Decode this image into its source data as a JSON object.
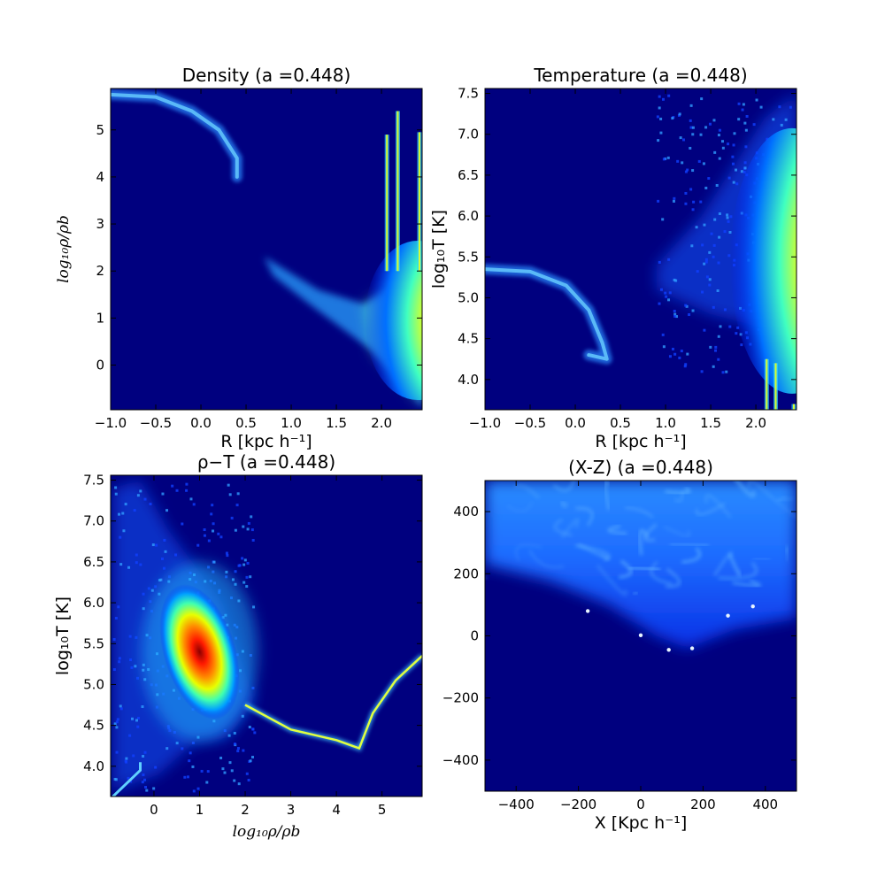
{
  "chart_data": [
    {
      "type": "heatmap",
      "title": "Density (a =0.448)",
      "xlabel": "R [kpc h⁻¹]",
      "ylabel": "log₁₀ρ/ρb",
      "xlim": [
        -1.0,
        2.45
      ],
      "ylim": [
        -0.95,
        5.88
      ],
      "xticks": [
        "−1.0",
        "−0.5",
        "0.0",
        "0.5",
        "1.0",
        "1.5",
        "2.0"
      ],
      "yticks": [
        "0",
        "1",
        "2",
        "3",
        "4",
        "5"
      ],
      "colormap": "jet",
      "background_color": "#00007f",
      "features": {
        "arc": [
          [
            -1.0,
            5.75
          ],
          [
            -0.5,
            5.7
          ],
          [
            -0.1,
            5.4
          ],
          [
            0.2,
            5.0
          ],
          [
            0.4,
            4.4
          ],
          [
            0.4,
            4.0
          ]
        ],
        "wedge": [
          [
            0.7,
            2.3
          ],
          [
            1.3,
            1.6
          ],
          [
            1.8,
            1.3
          ],
          [
            2.45,
            2.0
          ],
          [
            2.45,
            -0.9
          ],
          [
            2.3,
            -0.5
          ],
          [
            1.9,
            0.3
          ],
          [
            1.2,
            1.3
          ],
          [
            0.8,
            1.9
          ]
        ],
        "peak": [
          2.4,
          0.95
        ],
        "spikes": [
          [
            2.06,
            4.9
          ],
          [
            2.18,
            5.4
          ],
          [
            2.42,
            4.95
          ]
        ]
      },
      "grid": false
    },
    {
      "type": "heatmap",
      "title": "Temperature (a =0.448)",
      "xlabel": "R [kpc h⁻¹]",
      "ylabel": "log₁₀T  [K]",
      "xlim": [
        -1.0,
        2.45
      ],
      "ylim": [
        3.63,
        7.56
      ],
      "xticks": [
        "−1.0",
        "−0.5",
        "0.0",
        "0.5",
        "1.0",
        "1.5",
        "2.0"
      ],
      "yticks": [
        "4.0",
        "4.5",
        "5.0",
        "5.5",
        "6.0",
        "6.5",
        "7.0",
        "7.5"
      ],
      "colormap": "jet",
      "background_color": "#00007f",
      "features": {
        "arc": [
          [
            -1.0,
            5.35
          ],
          [
            -0.5,
            5.32
          ],
          [
            -0.1,
            5.15
          ],
          [
            0.15,
            4.85
          ],
          [
            0.3,
            4.45
          ],
          [
            0.35,
            4.25
          ],
          [
            0.15,
            4.3
          ]
        ],
        "cloud": [
          [
            0.9,
            5.4
          ],
          [
            1.4,
            6.0
          ],
          [
            2.1,
            7.2
          ],
          [
            2.45,
            7.5
          ],
          [
            2.45,
            4.1
          ],
          [
            2.2,
            4.6
          ],
          [
            1.5,
            4.8
          ],
          [
            0.9,
            5.1
          ]
        ],
        "peak": [
          2.4,
          5.45
        ],
        "spikes": [
          [
            2.12,
            4.25
          ],
          [
            2.22,
            4.2
          ],
          [
            2.42,
            3.7
          ]
        ]
      },
      "grid": false
    },
    {
      "type": "heatmap",
      "title": "ρ−T (a =0.448)",
      "xlabel": "log₁₀ρ/ρb",
      "ylabel": "log₁₀T  [K]",
      "xlim": [
        -0.95,
        5.88
      ],
      "ylim": [
        3.63,
        7.56
      ],
      "xticks": [
        "0",
        "1",
        "2",
        "3",
        "4",
        "5"
      ],
      "yticks": [
        "4.0",
        "4.5",
        "5.0",
        "5.5",
        "6.0",
        "6.5",
        "7.0",
        "7.5"
      ],
      "colormap": "jet",
      "background_color": "#00007f",
      "features": {
        "blob": {
          "center": [
            1.0,
            5.4
          ],
          "spread": [
            0.75,
            0.95
          ],
          "angle_deg": -62
        },
        "cloud": [
          [
            -0.9,
            7.4
          ],
          [
            -0.3,
            7.5
          ],
          [
            0.3,
            6.9
          ],
          [
            1.5,
            6.0
          ],
          [
            2.2,
            4.8
          ],
          [
            1.6,
            4.35
          ],
          [
            0.9,
            4.3
          ],
          [
            0.1,
            3.9
          ],
          [
            -0.9,
            3.7
          ]
        ],
        "ridge": [
          [
            2.0,
            4.75
          ],
          [
            3.0,
            4.45
          ],
          [
            4.0,
            4.32
          ],
          [
            4.5,
            4.22
          ],
          [
            4.8,
            4.65
          ],
          [
            5.3,
            5.05
          ],
          [
            5.88,
            5.35
          ]
        ],
        "lowline": [
          [
            -0.9,
            3.63
          ],
          [
            -0.3,
            3.95
          ],
          [
            -0.3,
            4.05
          ]
        ]
      },
      "grid": false
    },
    {
      "type": "heatmap",
      "title": "(X-Z) (a =0.448)",
      "xlabel": "X [Kpc h⁻¹]",
      "ylabel": "",
      "xlim": [
        -500,
        500
      ],
      "ylim": [
        -500,
        500
      ],
      "xticks": [
        "−400",
        "−200",
        "0",
        "200",
        "400"
      ],
      "yticks": [
        "−400",
        "−200",
        "0",
        "200",
        "400"
      ],
      "colormap": "blue",
      "background_color": "#00007f",
      "features": {
        "gas_boundary": [
          [
            -500,
            230
          ],
          [
            -300,
            180
          ],
          [
            -100,
            100
          ],
          [
            50,
            0
          ],
          [
            150,
            -40
          ],
          [
            300,
            20
          ],
          [
            500,
            60
          ]
        ],
        "hotspots": [
          [
            -170,
            80
          ],
          [
            0,
            2
          ],
          [
            90,
            -45
          ],
          [
            165,
            -40
          ],
          [
            280,
            65
          ],
          [
            360,
            95
          ]
        ]
      },
      "grid": false
    }
  ]
}
